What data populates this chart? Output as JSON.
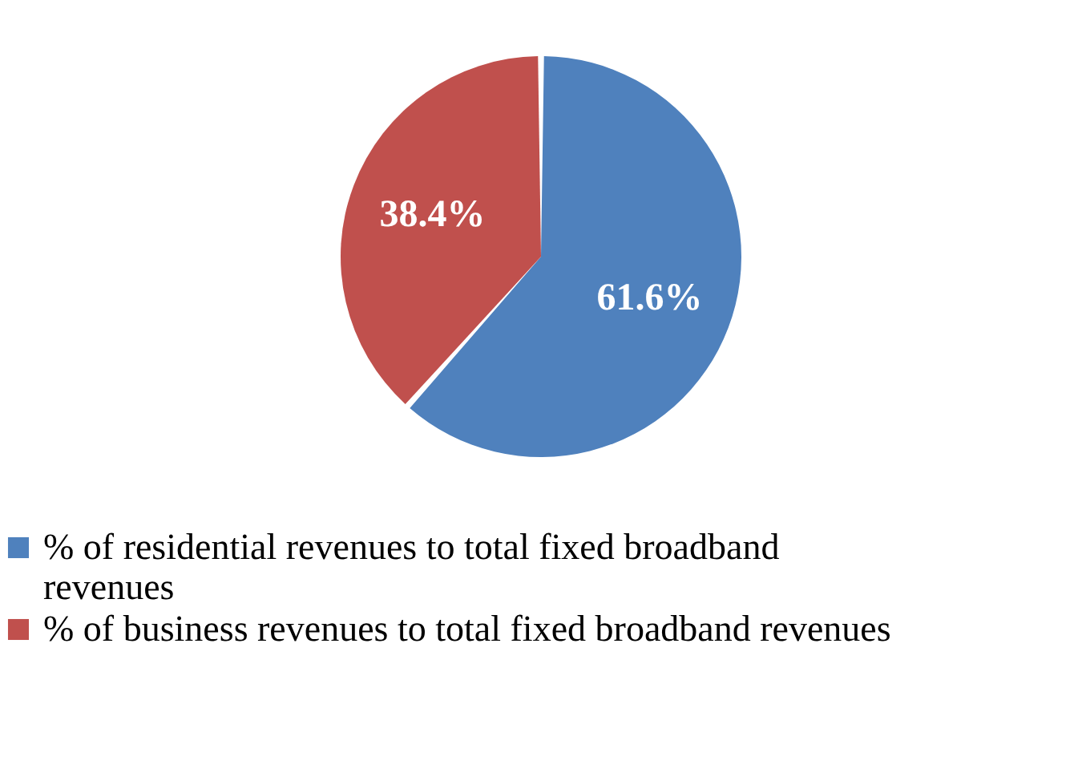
{
  "chart_data": {
    "type": "pie",
    "categories": [
      "% of residential revenues to total fixed broadband revenues",
      "% of business revenues to total fixed broadband revenues"
    ],
    "values": [
      61.6,
      38.4
    ],
    "colors": [
      "#4f81bd",
      "#c0504d"
    ],
    "value_labels": [
      "61.6%",
      "38.4%"
    ],
    "legend": "bottom"
  }
}
